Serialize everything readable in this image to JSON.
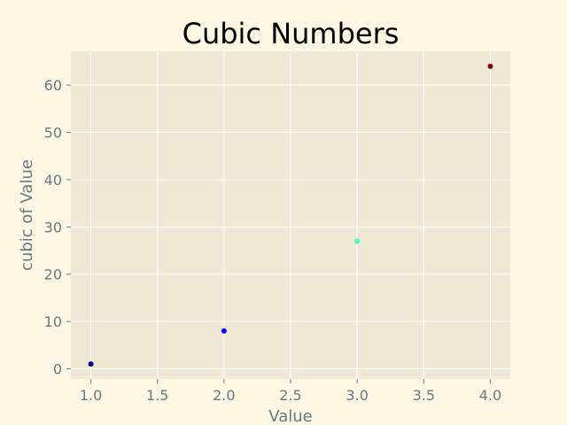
{
  "chart_data": {
    "type": "scatter",
    "title": "Cubic Numbers",
    "xlabel": "Value",
    "ylabel": "cubic of Value",
    "x": [
      1,
      2,
      3,
      4
    ],
    "y": [
      1,
      8,
      27,
      64
    ],
    "point_colors": [
      "#00008b",
      "#0000ff",
      "#40ffb7",
      "#8b0000"
    ],
    "xlim": [
      0.85,
      4.15
    ],
    "ylim": [
      -2.15,
      67.15
    ],
    "xticks": [
      1.0,
      1.5,
      2.0,
      2.5,
      3.0,
      3.5,
      4.0
    ],
    "xtick_labels": [
      "1.0",
      "1.5",
      "2.0",
      "2.5",
      "3.0",
      "3.5",
      "4.0"
    ],
    "yticks": [
      0,
      10,
      20,
      30,
      40,
      50,
      60
    ],
    "ytick_labels": [
      "0",
      "10",
      "20",
      "30",
      "40",
      "50",
      "60"
    ],
    "grid": true,
    "colors": {
      "figure_background": "#fdf6e3",
      "plot_background": "#eee8d5",
      "grid": "#ffffff",
      "text": "#657b83",
      "title": "#000000"
    }
  }
}
